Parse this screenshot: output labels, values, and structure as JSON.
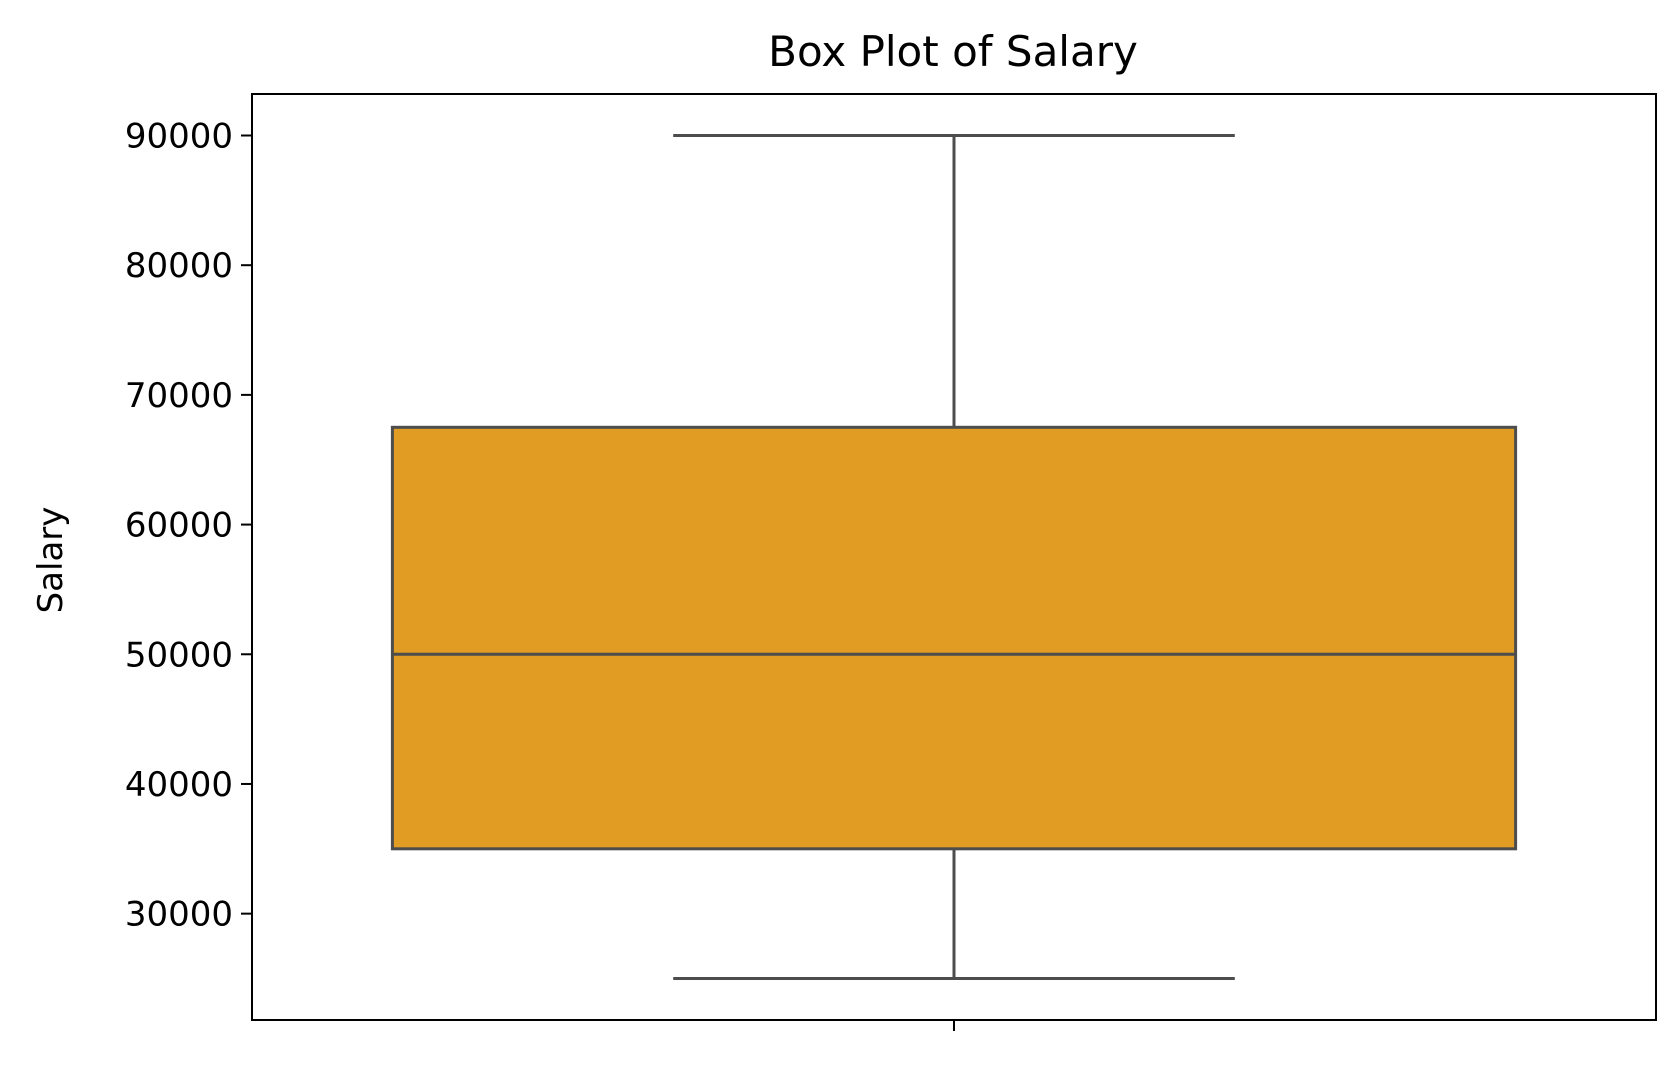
{
  "chart_data": {
    "type": "box",
    "title": "Box Plot of Salary",
    "xlabel": "",
    "ylabel": "Salary",
    "ylim": [
      21800,
      93200
    ],
    "yticks": [
      30000,
      40000,
      50000,
      60000,
      70000,
      80000,
      90000
    ],
    "grid": false,
    "legend": "none",
    "series": [
      {
        "whisker_low": 25000,
        "q1": 35000,
        "median": 50000,
        "q3": 67500,
        "whisker_high": 90000
      }
    ],
    "colors": {
      "box_fill": "#e09c23",
      "box_edge": "#4d4d4d",
      "axes_edge": "#000000"
    }
  }
}
